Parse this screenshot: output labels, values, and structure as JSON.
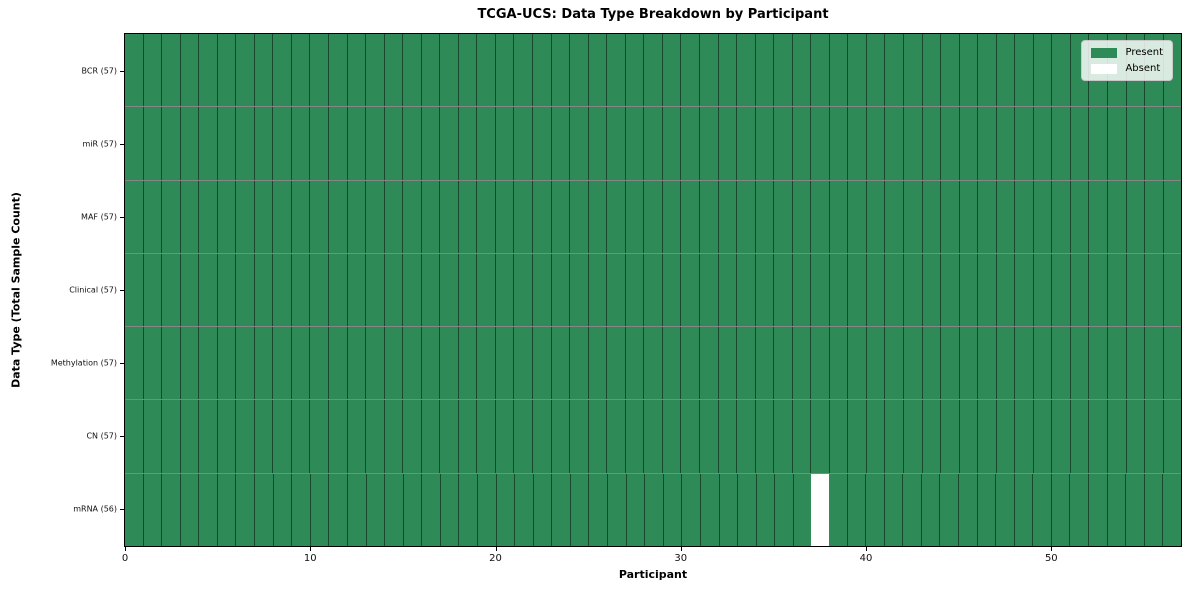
{
  "title": "TCGA-UCS: Data Type Breakdown by Participant",
  "x_axis": {
    "label": "Participant",
    "ticks": [
      "0",
      "10",
      "20",
      "30",
      "40",
      "50"
    ]
  },
  "y_axis": {
    "label": "Data Type (Total Sample Count)"
  },
  "legend": {
    "entries": [
      {
        "label": "Present",
        "color": "#2E8B57"
      },
      {
        "label": "Absent",
        "color": "#FFFFFF"
      }
    ]
  },
  "chart_data": {
    "type": "heatmap",
    "title": "TCGA-UCS: Data Type Breakdown by Participant",
    "xlabel": "Participant",
    "ylabel": "Data Type (Total Sample Count)",
    "x_range": [
      0,
      57
    ],
    "x_ticks": [
      0,
      10,
      20,
      30,
      40,
      50
    ],
    "n_participants": 57,
    "rows": [
      {
        "label": "BCR (57)",
        "present_count": 57,
        "absent_participants": []
      },
      {
        "label": "miR (57)",
        "present_count": 57,
        "absent_participants": []
      },
      {
        "label": "MAF (57)",
        "present_count": 57,
        "absent_participants": []
      },
      {
        "label": "Clinical (57)",
        "present_count": 57,
        "absent_participants": []
      },
      {
        "label": "Methylation (57)",
        "present_count": 57,
        "absent_participants": []
      },
      {
        "label": "CN (57)",
        "present_count": 57,
        "absent_participants": []
      },
      {
        "label": "mRNA (56)",
        "present_count": 56,
        "absent_participants": [
          37
        ]
      }
    ],
    "colors": {
      "present": "#2E8B57",
      "absent": "#FFFFFF"
    },
    "legend": {
      "position": "upper right",
      "entries": [
        "Present",
        "Absent"
      ]
    },
    "grid": true
  }
}
